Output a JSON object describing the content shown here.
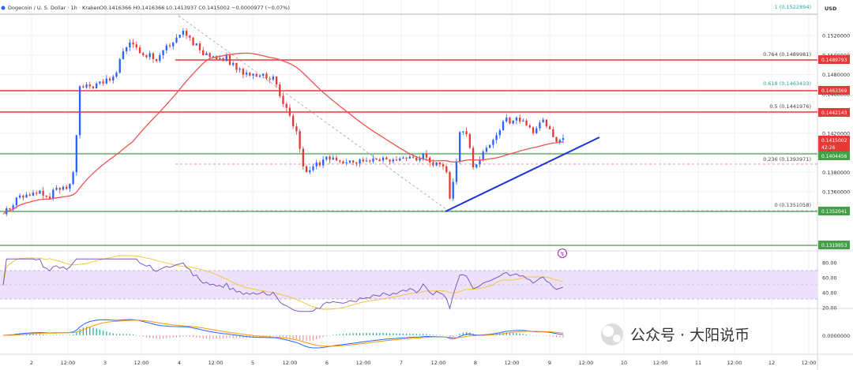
{
  "header": {
    "symbol": "Dogecoin / U. S. Dollar · 1h · Kraken",
    "ohlc": "O0.1416366  H0.1416366  L0.1413937  C0.1415002  −0.0000977 (−0.07%)",
    "currency": "USD"
  },
  "watermark": "公众号 · 大阳说币",
  "colors": {
    "up": "#2962ff",
    "down": "#e53935",
    "sma": "#ef5350",
    "trendline": "#1a35d6",
    "resistance": "#e53935",
    "support": "#43a047",
    "rsi": "#7e57c2",
    "rsi_ma": "#f5c542",
    "rsi_band": "#ece2fb",
    "macd": "#2962ff",
    "macd_signal": "#ff9800",
    "fib_teal": "#26a69a"
  },
  "chart_data": [
    {
      "type": "candlestick",
      "title": "Dogecoin / U. S. Dollar · 1h · Kraken",
      "ylim": [
        0.1305,
        0.1542
      ],
      "xlabels": [
        "2",
        "12:00",
        "3",
        "12:00",
        "4",
        "12:00",
        "5",
        "12:00",
        "6",
        "12:00",
        "7",
        "12:00",
        "8",
        "12:00",
        "9",
        "12:00",
        "10",
        "12:00",
        "11",
        "12:00",
        "12",
        "12:00"
      ],
      "yticks": [
        "0.1520000",
        "0.1500000",
        "0.1480000",
        "0.1460000",
        "0.1440000",
        "0.1420000",
        "0.1400000",
        "0.1380000",
        "0.1360000",
        "0.1340000"
      ],
      "closes": [
        0.1337,
        0.1343,
        0.1342,
        0.1346,
        0.1354,
        0.1356,
        0.1354,
        0.1357,
        0.1356,
        0.1359,
        0.1358,
        0.1361,
        0.1356,
        0.1355,
        0.1353,
        0.1362,
        0.1364,
        0.1362,
        0.1365,
        0.1363,
        0.1368,
        0.138,
        0.1418,
        0.1468,
        0.1467,
        0.147,
        0.1468,
        0.1466,
        0.1471,
        0.1473,
        0.1471,
        0.1476,
        0.1474,
        0.1478,
        0.1482,
        0.1496,
        0.1504,
        0.1508,
        0.1513,
        0.1511,
        0.1508,
        0.1502,
        0.15,
        0.1498,
        0.1502,
        0.1496,
        0.1494,
        0.15,
        0.1505,
        0.151,
        0.1509,
        0.1513,
        0.1518,
        0.1521,
        0.1525,
        0.152,
        0.1518,
        0.151,
        0.1512,
        0.1505,
        0.15,
        0.1502,
        0.1498,
        0.1499,
        0.1496,
        0.1497,
        0.1494,
        0.15,
        0.149,
        0.1492,
        0.1485,
        0.1486,
        0.148,
        0.1482,
        0.1479,
        0.1481,
        0.1478,
        0.1479,
        0.1481,
        0.1476,
        0.1475,
        0.1478,
        0.147,
        0.1458,
        0.145,
        0.1446,
        0.1438,
        0.1427,
        0.1422,
        0.1404,
        0.1386,
        0.138,
        0.1382,
        0.1386,
        0.139,
        0.1387,
        0.1393,
        0.1396,
        0.1393,
        0.1395,
        0.1392,
        0.1391,
        0.1389,
        0.139,
        0.1392,
        0.139,
        0.1389,
        0.1393,
        0.1391,
        0.1392,
        0.1391,
        0.1394,
        0.1393,
        0.1392,
        0.1395,
        0.1393,
        0.1391,
        0.1393,
        0.1392,
        0.1394,
        0.1395,
        0.1394,
        0.1396,
        0.1395,
        0.1392,
        0.1394,
        0.1399,
        0.1395,
        0.139,
        0.1387,
        0.139,
        0.1388,
        0.1386,
        0.138,
        0.1353,
        0.137,
        0.1391,
        0.1421,
        0.1422,
        0.1419,
        0.1405,
        0.1385,
        0.1388,
        0.1393,
        0.1401,
        0.1405,
        0.1408,
        0.1413,
        0.1418,
        0.1423,
        0.1432,
        0.1436,
        0.143,
        0.1433,
        0.1436,
        0.1432,
        0.1433,
        0.1428,
        0.1426,
        0.142,
        0.1425,
        0.1431,
        0.1434,
        0.1427,
        0.1424,
        0.1416,
        0.1411,
        0.1413,
        0.1415
      ]
    },
    {
      "type": "line",
      "name": "RSI",
      "ylim": [
        10,
        90
      ],
      "yticks": [
        "80.00",
        "60.00",
        "40.00",
        "20.00"
      ]
    },
    {
      "type": "line",
      "name": "MACD",
      "yticks": [
        "0.0000000"
      ]
    }
  ],
  "price_labels": {
    "current_price": "0.1415002",
    "countdown": "42:26",
    "badge_1": "0.1489793",
    "badge_2": "0.1463369",
    "badge_3": "0.1442143",
    "badge_4": "0.1404456",
    "badge_5": "0.1352041",
    "badge_6": "0.1319953"
  },
  "fib": {
    "f1": "1 (0.1522894)",
    "f0764": "0.764 (0.1489981)",
    "f0618": "0.618 (0.1463433)",
    "f05": "0.5 (0.1441976)",
    "f0236": "0.236 (0.1393971)",
    "f0": "0 (0.1351058)"
  }
}
